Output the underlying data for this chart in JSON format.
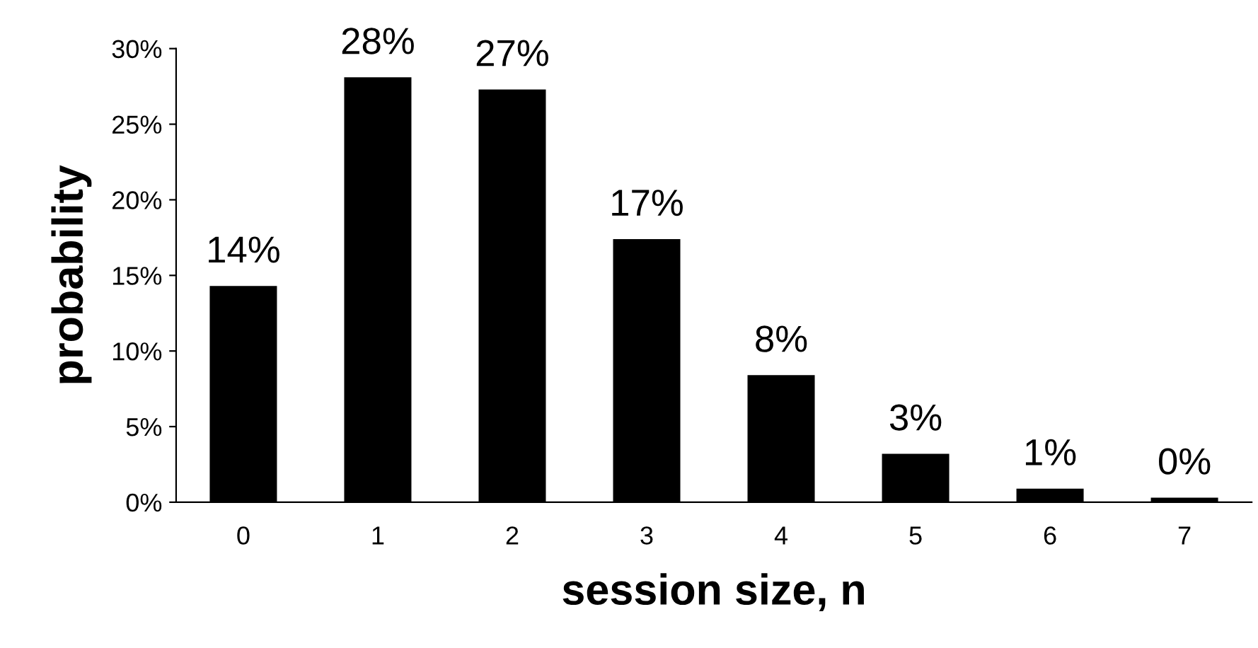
{
  "chart_data": {
    "type": "bar",
    "xlabel": "session size, n",
    "ylabel": "probability",
    "categories": [
      "0",
      "1",
      "2",
      "3",
      "4",
      "5",
      "6",
      "7"
    ],
    "values": [
      14.3,
      28.1,
      27.3,
      17.4,
      8.4,
      3.2,
      0.9,
      0.3
    ],
    "value_labels": [
      "14%",
      "28%",
      "27%",
      "17%",
      "8%",
      "3%",
      "1%",
      "0%"
    ],
    "color": "#000000",
    "ylim": [
      0,
      30
    ],
    "yticks": [
      {
        "value": 0,
        "label": "0%"
      },
      {
        "value": 5,
        "label": "5%"
      },
      {
        "value": 10,
        "label": "10%"
      },
      {
        "value": 15,
        "label": "15%"
      },
      {
        "value": 20,
        "label": "20%"
      },
      {
        "value": 25,
        "label": "25%"
      },
      {
        "value": 30,
        "label": "30%"
      }
    ],
    "grid": false,
    "legend": false
  }
}
